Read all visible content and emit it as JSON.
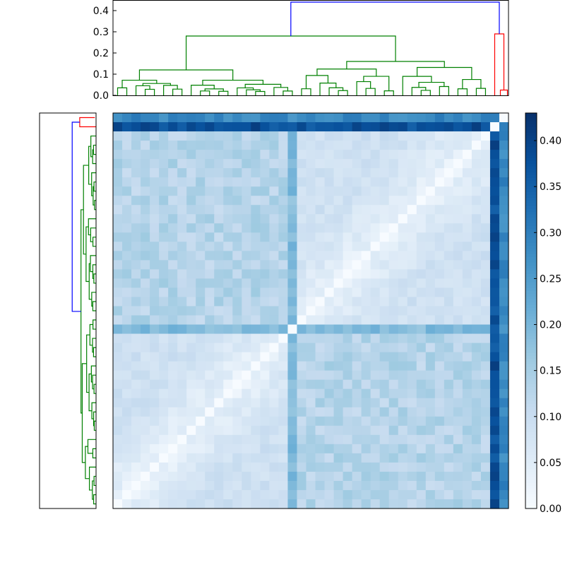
{
  "chart_data": [
    {
      "type": "heatmap",
      "title": "",
      "xlabel": "",
      "ylabel": "",
      "n": 43,
      "colormap": [
        "#f7fbff",
        "#deebf7",
        "#c6dbef",
        "#9ecae1",
        "#6baed6",
        "#4292c6",
        "#2171b5",
        "#08519c",
        "#08306b"
      ],
      "vmin": 0.0,
      "vmax": 0.43,
      "leaf_order_note": "",
      "matrix_description": "",
      "outlier_rows": {
        "row_0": 0.28,
        "row_1": 0.38
      },
      "typical_values": {
        "diagonal": 0.0,
        "within_cluster": 0.09,
        "between_cluster": 0.13,
        "column_21": 0.19
      }
    },
    {
      "type": "colorbar",
      "ticks": [
        "0.00",
        "0.05",
        "0.10",
        "0.15",
        "0.20",
        "0.25",
        "0.30",
        "0.35",
        "0.40"
      ],
      "tick_values": [
        0.0,
        0.05,
        0.1,
        0.15,
        0.2,
        0.25,
        0.3,
        0.35,
        0.4
      ],
      "vmin": 0.0,
      "vmax": 0.43
    },
    {
      "type": "dendrogram",
      "orientation": "top",
      "yticks": [
        "0.0",
        "0.1",
        "0.2",
        "0.3",
        "0.4"
      ],
      "ytick_values": [
        0.0,
        0.1,
        0.2,
        0.3,
        0.4
      ],
      "ylim": [
        0.0,
        0.45
      ],
      "root_height": 0.44,
      "colors": {
        "root": "#0000ff",
        "cluster_a": "#008000",
        "cluster_b": "#ff0000"
      },
      "cluster_b_height": 0.29,
      "cluster_a_height": 0.28
    },
    {
      "type": "dendrogram",
      "orientation": "left",
      "colors": {
        "root": "#0000ff",
        "cluster_a": "#008000",
        "cluster_b": "#ff0000"
      }
    }
  ]
}
